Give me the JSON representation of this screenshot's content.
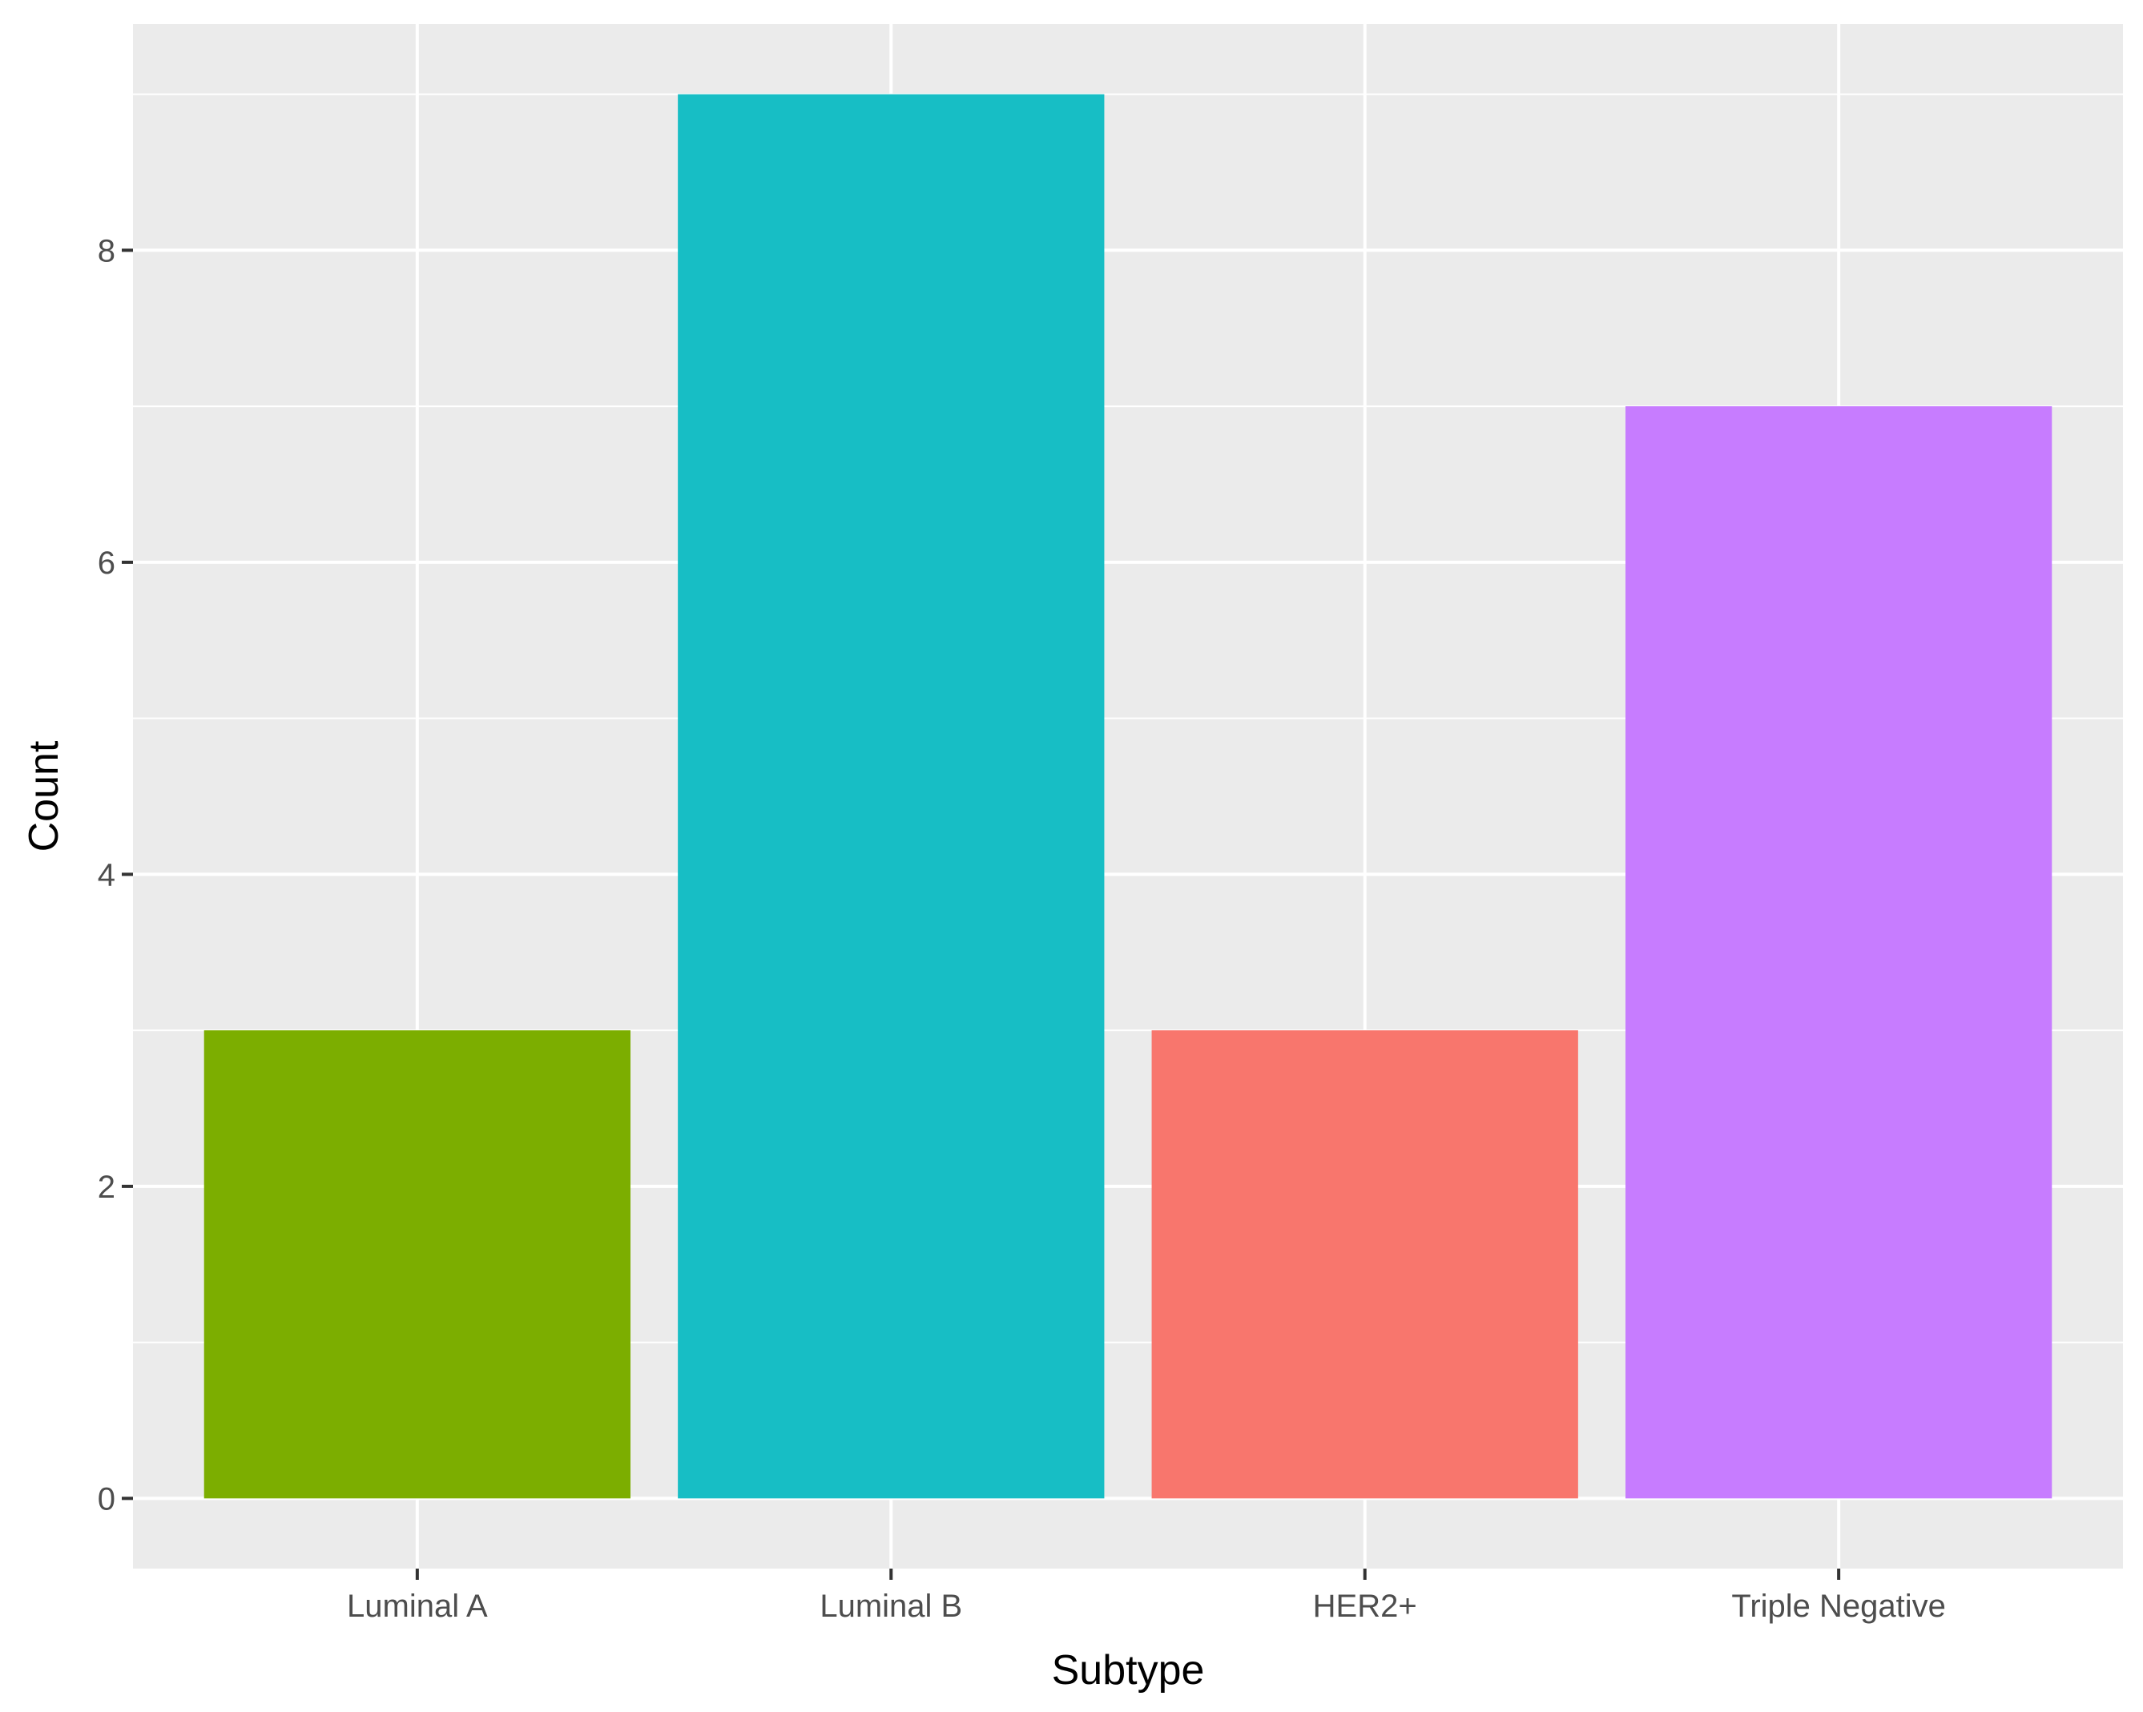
{
  "chart_data": {
    "type": "bar",
    "title": "",
    "xlabel": "Subtype",
    "ylabel": "Count",
    "categories": [
      "Luminal A",
      "Luminal B",
      "HER2+",
      "Triple Negative"
    ],
    "values": [
      3,
      9,
      3,
      7
    ],
    "colors": [
      "#7CAE00",
      "#17BEC5",
      "#F8766D",
      "#C77CFF"
    ],
    "ylim": [
      -0.45,
      9.45
    ],
    "yticks": [
      0,
      2,
      4,
      6,
      8
    ],
    "ytick_labels": [
      "0",
      "2",
      "4",
      "6",
      "8"
    ],
    "grid": true,
    "legend": "none",
    "panel_background": "#EBEBEB",
    "grid_color": "#FFFFFF",
    "tick_label_color": "#4D4D4D",
    "tick_mark_color": "#333333"
  }
}
